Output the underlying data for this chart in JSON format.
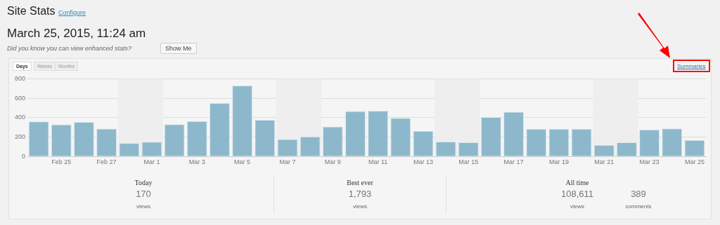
{
  "chart_data": {
    "type": "bar",
    "title": "Site Stats",
    "subtitle": "March 25, 2015, 11:24 am",
    "annotations": [
      "Configure",
      "Did you know you can view enhanced stats?",
      "Show Me",
      "Days",
      "Weeks",
      "Months",
      "Summaries",
      "Today",
      "170",
      "views",
      "Best ever",
      "1,793",
      "views",
      "All time",
      "108,611",
      "views",
      "389",
      "comments"
    ],
    "x": [
      "2015-02-24",
      "2015-02-25",
      "2015-02-26",
      "2015-02-27",
      "2015-02-28",
      "2015-03-01",
      "2015-03-02",
      "2015-03-03",
      "2015-03-04",
      "2015-03-05",
      "2015-03-06",
      "2015-03-07",
      "2015-03-08",
      "2015-03-09",
      "2015-03-10",
      "2015-03-11",
      "2015-03-12",
      "2015-03-13",
      "2015-03-14",
      "2015-03-15",
      "2015-03-16",
      "2015-03-17",
      "2015-03-18",
      "2015-03-19",
      "2015-03-20",
      "2015-03-21",
      "2015-03-22",
      "2015-03-23",
      "2015-03-24",
      "2015-03-25"
    ],
    "values": [
      360,
      330,
      355,
      287,
      138,
      151,
      332,
      365,
      551,
      730,
      377,
      179,
      206,
      309,
      468,
      470,
      397,
      264,
      153,
      146,
      405,
      460,
      284,
      284,
      284,
      118,
      146,
      277,
      289,
      170
    ],
    "color": "#8db8cc",
    "xlim": [
      "2015-02-23T12:00",
      "2015-03-25T12:00"
    ],
    "xticks": [
      {
        "value": "2015-02-25",
        "label": "Feb 25"
      },
      {
        "value": "2015-02-27",
        "label": "Feb 27"
      },
      {
        "value": "2015-03-01",
        "label": "Mar 1"
      },
      {
        "value": "2015-03-03",
        "label": "Mar 3"
      },
      {
        "value": "2015-03-05",
        "label": "Mar 5"
      },
      {
        "value": "2015-03-07",
        "label": "Mar 7"
      },
      {
        "value": "2015-03-09",
        "label": "Mar 9"
      },
      {
        "value": "2015-03-11",
        "label": "Mar 11"
      },
      {
        "value": "2015-03-13",
        "label": "Mar 13"
      },
      {
        "value": "2015-03-15",
        "label": "Mar 15"
      },
      {
        "value": "2015-03-17",
        "label": "Mar 17"
      },
      {
        "value": "2015-03-19",
        "label": "Mar 19"
      },
      {
        "value": "2015-03-21",
        "label": "Mar 21"
      },
      {
        "value": "2015-03-23",
        "label": "Mar 23"
      },
      {
        "value": "2015-03-25",
        "label": "Mar 25"
      }
    ],
    "ylim": [
      0,
      800
    ],
    "yticks": [
      0,
      200,
      400,
      600,
      800
    ],
    "grid": "y",
    "bands": [
      {
        "axis": "x",
        "from": "2015-02-27T12:00",
        "to": "2015-03-01T12:00",
        "color": "#eeeeee"
      },
      {
        "axis": "x",
        "from": "2015-03-06T12:00",
        "to": "2015-03-08T12:00",
        "color": "#eeeeee"
      },
      {
        "axis": "x",
        "from": "2015-03-13T12:00",
        "to": "2015-03-15T12:00",
        "color": "#eeeeee"
      },
      {
        "axis": "x",
        "from": "2015-03-20T12:00",
        "to": "2015-03-22T12:00",
        "color": "#eeeeee"
      }
    ]
  }
}
